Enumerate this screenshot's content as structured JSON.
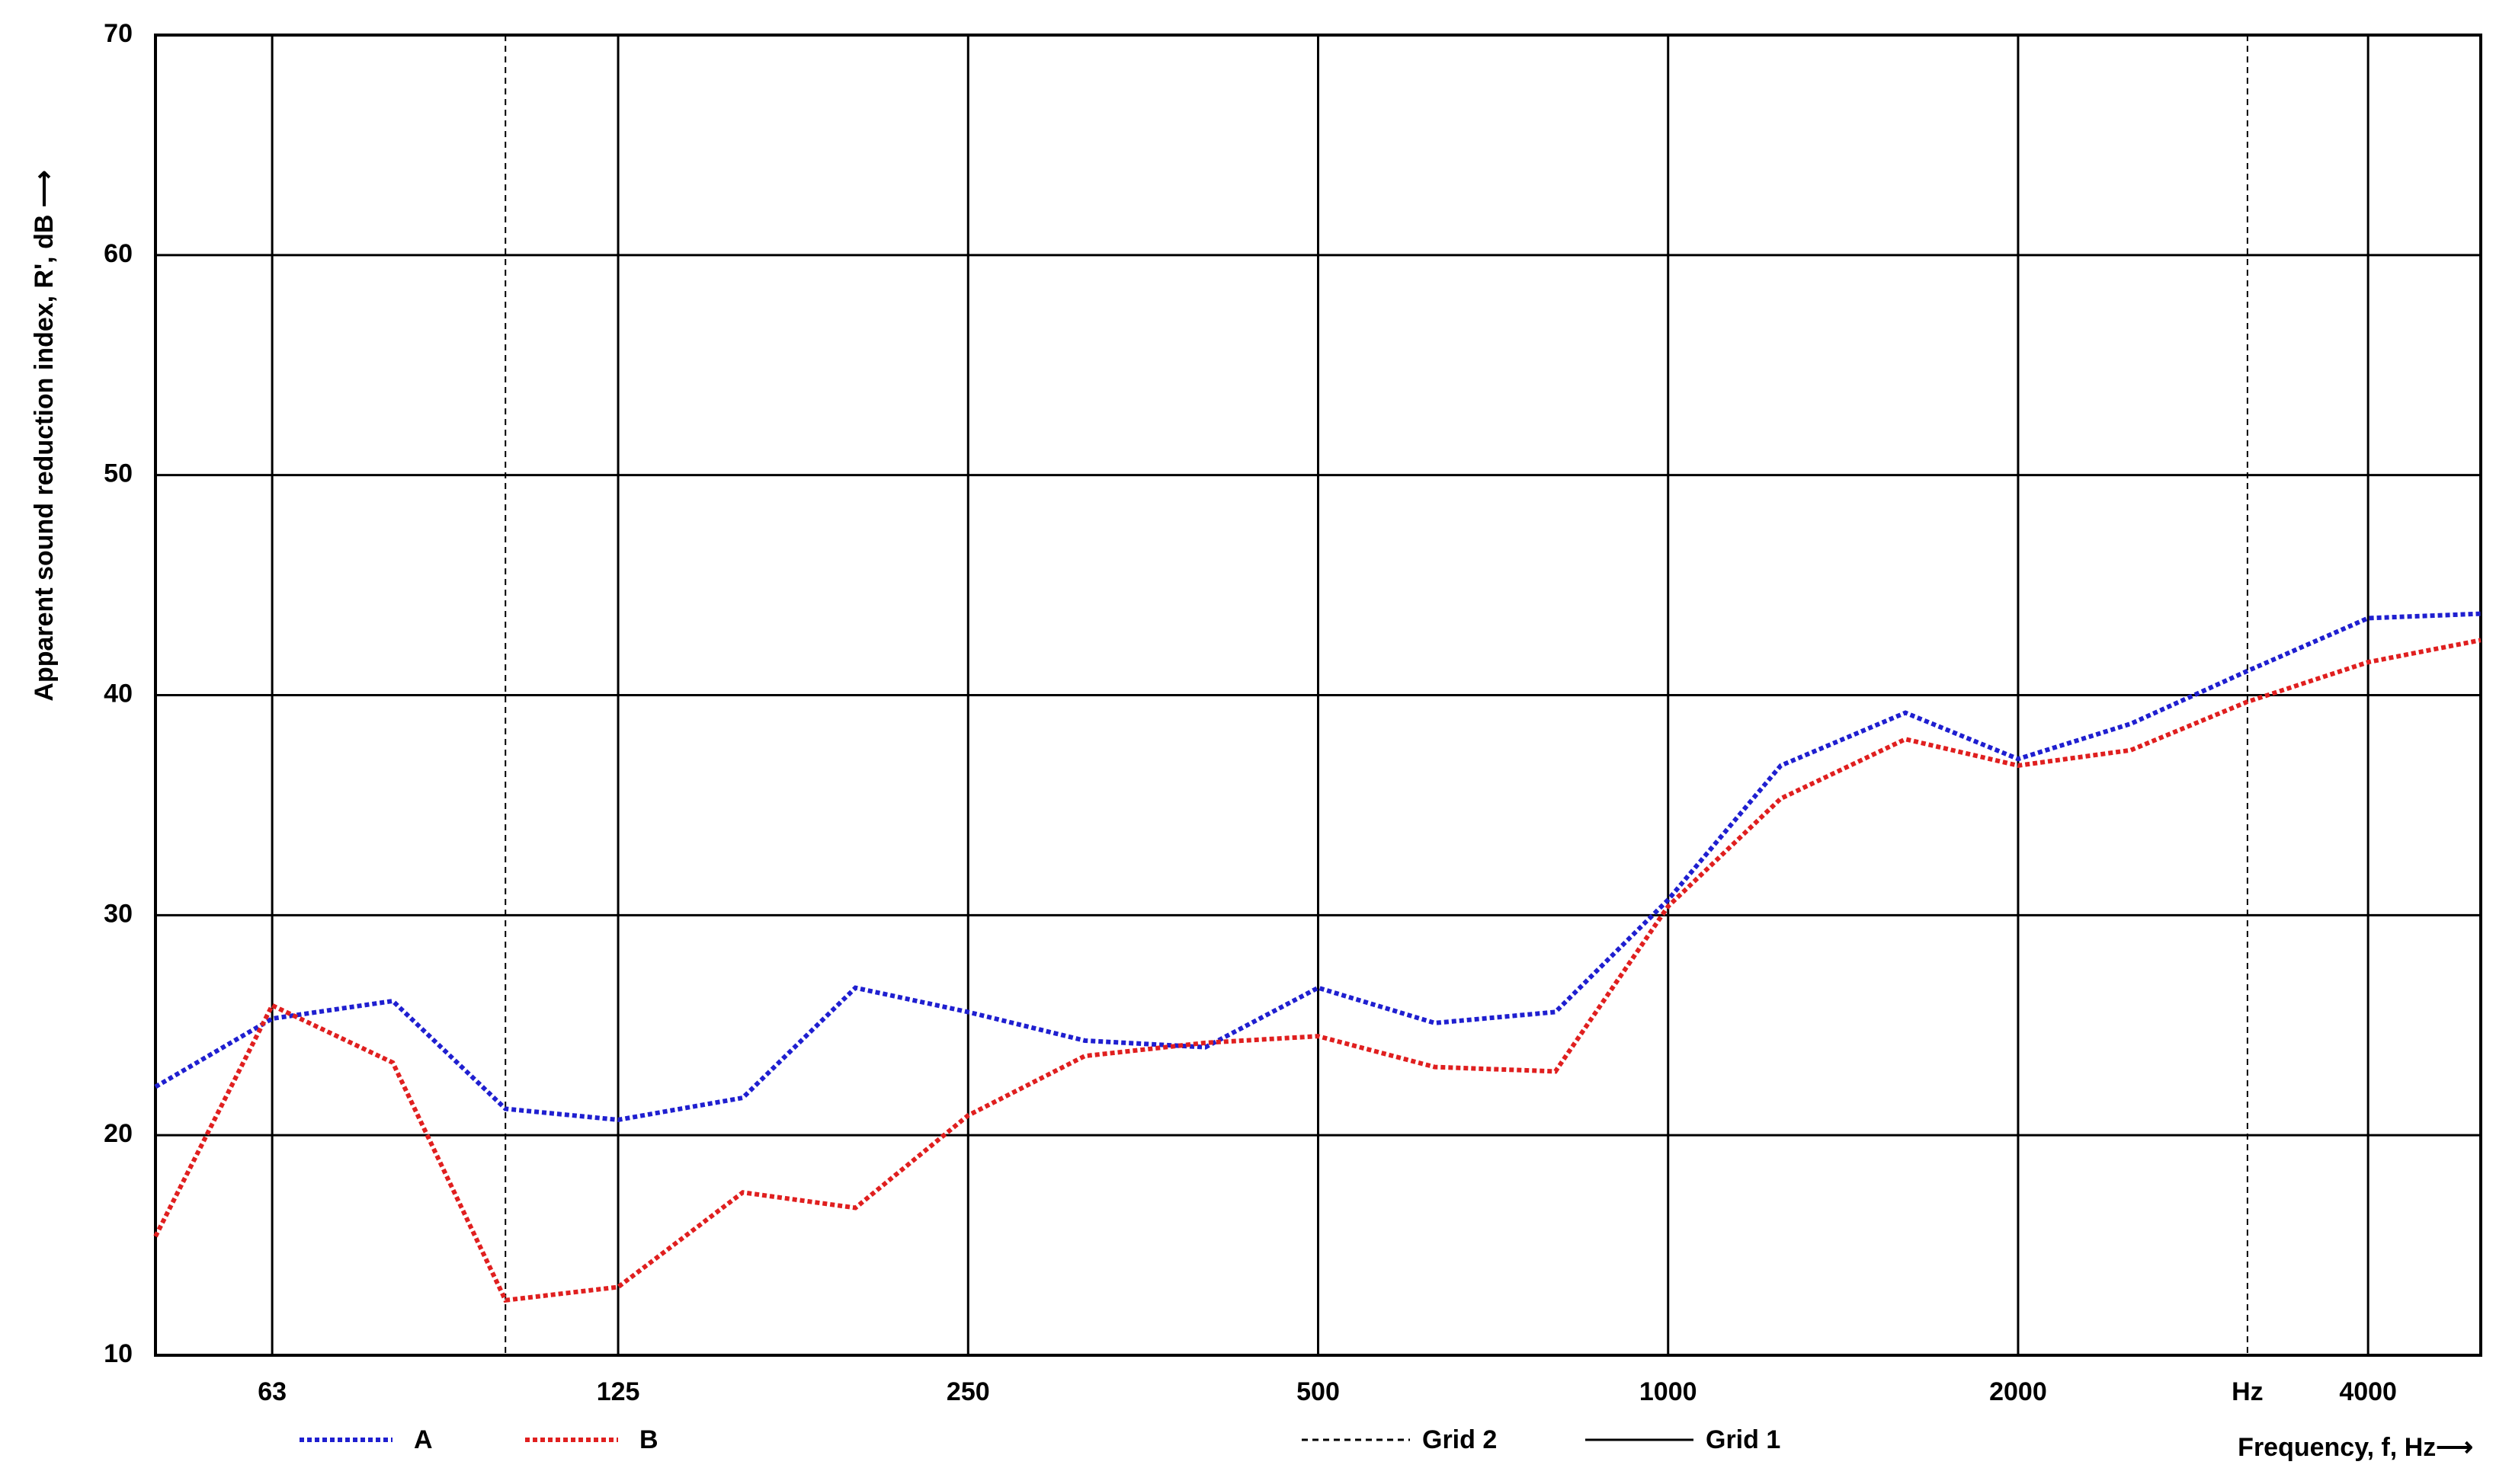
{
  "chart_data": {
    "type": "line",
    "y_label": "Apparent sound reduction index, R', dB ⟶",
    "x_label": "Frequency, f, Hz⟶",
    "x_scale": "log",
    "x": [
      50,
      63,
      80,
      100,
      125,
      160,
      200,
      250,
      315,
      400,
      500,
      630,
      800,
      1000,
      1250,
      1600,
      2000,
      2500,
      3150,
      4000,
      5000
    ],
    "series": [
      {
        "name": "A",
        "color": "#1f1fd0",
        "values": [
          22.2,
          25.3,
          26.1,
          21.2,
          20.7,
          21.7,
          26.7,
          25.6,
          24.3,
          24.0,
          26.7,
          25.1,
          25.6,
          30.7,
          36.8,
          39.2,
          37.1,
          38.7,
          41.1,
          43.5,
          43.7
        ]
      },
      {
        "name": "B",
        "color": "#e01f1f",
        "values": [
          15.4,
          25.9,
          23.3,
          12.5,
          13.1,
          17.4,
          16.7,
          20.9,
          23.6,
          24.2,
          24.5,
          23.1,
          22.9,
          30.4,
          35.3,
          38.0,
          36.8,
          37.5,
          39.7,
          41.5,
          42.5
        ]
      }
    ],
    "xlim": [
      50,
      5000
    ],
    "xticks": [
      63,
      125,
      250,
      500,
      1000,
      2000,
      {
        "value": 3150,
        "label": "Hz"
      },
      4000
    ],
    "ylim": [
      10,
      70
    ],
    "yticks": [
      10,
      20,
      30,
      40,
      50,
      60,
      70
    ],
    "grid_lines": [
      {
        "name": "Grid 2",
        "style": "dashed",
        "x": [
          100,
          3150
        ]
      },
      {
        "name": "Grid 1",
        "style": "solid",
        "x": [
          63,
          125,
          250,
          500,
          1000,
          2000,
          4000
        ]
      }
    ]
  }
}
